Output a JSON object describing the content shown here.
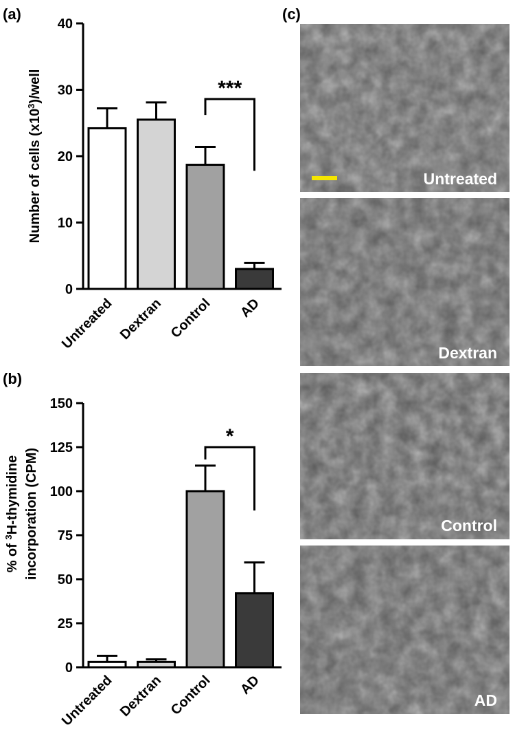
{
  "chart_data": [
    {
      "panel": "(a)",
      "type": "bar",
      "ylabel": "Number of cells (x10",
      "ylabel_sup": "3",
      "ylabel_suffix": ")/well",
      "ylim": [
        0,
        40
      ],
      "yticks": [
        "0",
        "10",
        "20",
        "30",
        "40"
      ],
      "categories": [
        "Untreated",
        "Dextran",
        "Control",
        "AD"
      ],
      "values": [
        24.2,
        25.5,
        18.7,
        3.0
      ],
      "errors": [
        3.0,
        2.6,
        2.7,
        0.9
      ],
      "colors": [
        "#ffffff",
        "#d4d4d4",
        "#a1a1a1",
        "#3a3a3a"
      ],
      "significance": {
        "from": "Control",
        "to": "AD",
        "label": "***",
        "bracket_y": 28.6,
        "left_drop_y": 26.2,
        "right_drop_y": 17.8
      }
    },
    {
      "panel": "(b)",
      "type": "bar",
      "ylabel_line1": "% of ",
      "ylabel_sup": "3",
      "ylabel_line1_suffix": "H-thymidine",
      "ylabel_line2": "incorporation (CPM)",
      "ylim": [
        0,
        150
      ],
      "yticks": [
        "0",
        "25",
        "50",
        "75",
        "100",
        "125",
        "150"
      ],
      "categories": [
        "Untreated",
        "Dextran",
        "Control",
        "AD"
      ],
      "values": [
        3.0,
        3.0,
        100.0,
        42.0
      ],
      "errors": [
        3.5,
        1.5,
        14.5,
        17.5
      ],
      "colors": [
        "#ffffff",
        "#d4d4d4",
        "#a1a1a1",
        "#3a3a3a"
      ],
      "significance": {
        "from": "Control",
        "to": "AD",
        "label": "*",
        "bracket_y": 125,
        "left_drop_y": 118,
        "right_drop_y": 89
      }
    }
  ],
  "micrographs": {
    "panel": "(c)",
    "images": [
      {
        "label": "Untreated",
        "scale_bar": true
      },
      {
        "label": "Dextran",
        "scale_bar": false
      },
      {
        "label": "Control",
        "scale_bar": false
      },
      {
        "label": "AD",
        "scale_bar": false
      }
    ],
    "scale_bar_color": "#f5e600"
  }
}
